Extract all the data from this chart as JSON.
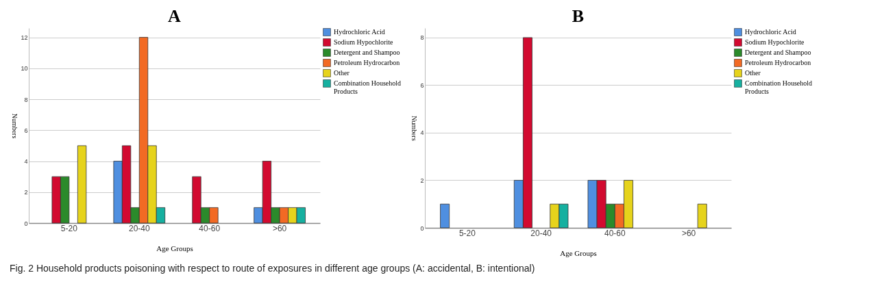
{
  "chart_data": [
    {
      "type": "bar",
      "title": "A",
      "xlabel": "Age Groups",
      "ylabel": "Numbers",
      "categories": [
        "5-20",
        "20-40",
        "40-60",
        ">60"
      ],
      "series": [
        {
          "name": "Hydrochloric Acid",
          "color": "#4f8fe0",
          "values": [
            null,
            4,
            null,
            1
          ]
        },
        {
          "name": "Sodium Hypochlorite",
          "color": "#d20a30",
          "values": [
            3,
            5,
            3,
            4
          ]
        },
        {
          "name": "Detergent and Shampoo",
          "color": "#2b8a2b",
          "values": [
            3,
            1,
            1,
            1
          ]
        },
        {
          "name": "Petroleum Hydrocarbon",
          "color": "#f26a24",
          "values": [
            null,
            12,
            1,
            1
          ]
        },
        {
          "name": "Other",
          "color": "#e6d31c",
          "values": [
            5,
            5,
            null,
            1
          ]
        },
        {
          "name": "Combination  Household Products",
          "color": "#16b0a0",
          "values": [
            null,
            1,
            null,
            1
          ]
        }
      ],
      "ylim": [
        0,
        12.6
      ],
      "yticks": [
        0,
        2,
        4,
        6,
        8,
        10,
        12
      ],
      "grid": "y",
      "legend": "right",
      "annotations": [
        "Fig. 2  Household products poisoning with respect to route of exposures in different age groups (A: accidental, B: intentional)"
      ]
    },
    {
      "type": "bar",
      "title": "B",
      "xlabel": "Age Groups",
      "ylabel": "Numbers",
      "categories": [
        "5-20",
        "20-40",
        "40-60",
        ">60"
      ],
      "series": [
        {
          "name": "Hydrochloric Acid",
          "color": "#4f8fe0",
          "values": [
            1,
            2,
            2,
            null
          ]
        },
        {
          "name": "Sodium Hypochlorite",
          "color": "#d20a30",
          "values": [
            null,
            8,
            2,
            null
          ]
        },
        {
          "name": "Detergent and Shampoo",
          "color": "#2b8a2b",
          "values": [
            null,
            null,
            1,
            null
          ]
        },
        {
          "name": "Petroleum Hydrocarbon",
          "color": "#f26a24",
          "values": [
            null,
            null,
            1,
            null
          ]
        },
        {
          "name": "Other",
          "color": "#e6d31c",
          "values": [
            null,
            1,
            2,
            1
          ]
        },
        {
          "name": "Combination  Household Products",
          "color": "#16b0a0",
          "values": [
            null,
            1,
            null,
            null
          ]
        }
      ],
      "ylim": [
        0,
        8.4
      ],
      "yticks": [
        0,
        2,
        4,
        6,
        8
      ],
      "grid": "y",
      "legend": "right"
    }
  ]
}
